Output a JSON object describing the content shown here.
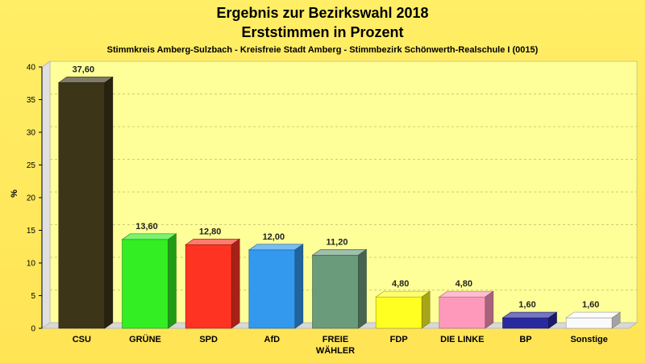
{
  "chart_data": {
    "type": "bar",
    "title": "Ergebnis zur Bezirkswahl 2018",
    "title2": "Erststimmen in Prozent",
    "subtitle": "Stimmkreis Amberg-Sulzbach - Kreisfreie Stadt Amberg - Stimmbezirk Schönwerth-Realschule I (0015)",
    "ylabel": "%",
    "ylim": [
      0,
      40
    ],
    "yticks": [
      0,
      5,
      10,
      15,
      20,
      25,
      30,
      35,
      40
    ],
    "grid": true,
    "categories": [
      "CSU",
      "GRÜNE",
      "SPD",
      "AfD",
      "FREIE\nWÄHLER",
      "FDP",
      "DIE LINKE",
      "BP",
      "Sonstige"
    ],
    "values": [
      37.6,
      13.6,
      12.8,
      12.0,
      11.2,
      4.8,
      4.8,
      1.6,
      1.6
    ],
    "value_labels": [
      "37,60",
      "13,60",
      "12,80",
      "12,00",
      "11,20",
      "4,80",
      "4,80",
      "1,60",
      "1,60"
    ],
    "colors": [
      "#3d3518",
      "#33ee22",
      "#ff3322",
      "#3399ee",
      "#6a9c7c",
      "#ffff22",
      "#ff99bb",
      "#2a2aa0",
      "#fafafa"
    ]
  }
}
